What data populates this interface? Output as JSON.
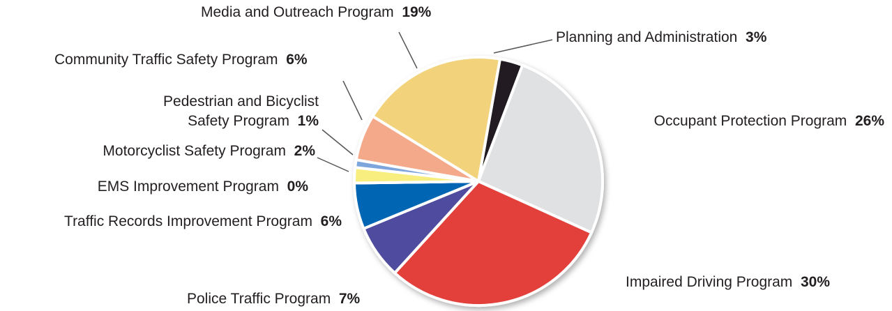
{
  "chart_data": {
    "type": "pie",
    "categories": [
      "Planning and Administration",
      "Occupant Protection Program",
      "Impaired Driving Program",
      "Police Traffic Program",
      "Traffic Records Improvement Program",
      "EMS Improvement Program",
      "Motorcyclist Safety Program",
      "Pedestrian and Bicyclist Safety Program",
      "Community  Traffic Safety Program",
      "Media and Outreach Program"
    ],
    "values": [
      3,
      26,
      30,
      7,
      6,
      0,
      2,
      1,
      6,
      19
    ],
    "value_labels": [
      "3%",
      "26%",
      "30%",
      "7%",
      "6%",
      "0%",
      "2%",
      "1%",
      "6%",
      "19%"
    ],
    "colors": [
      "#231f20",
      "#e0e1e3",
      "#e3403a",
      "#4f4c9e",
      "#0066b3",
      "#2e8b57",
      "#f7ee7f",
      "#7fa6dc",
      "#f5a98b",
      "#f2d27a"
    ]
  }
}
